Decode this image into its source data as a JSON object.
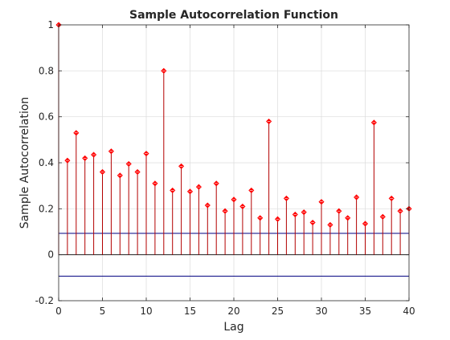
{
  "chart_data": {
    "type": "stem",
    "title": "Sample Autocorrelation Function",
    "xlabel": "Lag",
    "ylabel": "Sample Autocorrelation",
    "xlim": [
      0,
      40
    ],
    "ylim": [
      -0.2,
      1
    ],
    "xticks": [
      0,
      5,
      10,
      15,
      20,
      25,
      30,
      35,
      40
    ],
    "xtick_labels": [
      "0",
      "5",
      "10",
      "15",
      "20",
      "25",
      "30",
      "35",
      "40"
    ],
    "yticks": [
      -0.2,
      0,
      0.2,
      0.4,
      0.6,
      0.8,
      1
    ],
    "ytick_labels": [
      "-0.2",
      "0",
      "0.2",
      "0.4",
      "0.6",
      "0.8",
      "1"
    ],
    "grid": true,
    "series": [
      {
        "x": [
          0,
          1,
          2,
          3,
          4,
          5,
          6,
          7,
          8,
          9,
          10,
          11,
          12,
          13,
          14,
          15,
          16,
          17,
          18,
          19,
          20,
          21,
          22,
          23,
          24,
          25,
          26,
          27,
          28,
          29,
          30,
          31,
          32,
          33,
          34,
          35,
          36,
          37,
          38,
          39,
          40
        ],
        "values": [
          1.0,
          0.41,
          0.53,
          0.42,
          0.435,
          0.36,
          0.45,
          0.345,
          0.395,
          0.36,
          0.44,
          0.31,
          0.8,
          0.28,
          0.385,
          0.275,
          0.295,
          0.215,
          0.31,
          0.19,
          0.24,
          0.21,
          0.28,
          0.16,
          0.58,
          0.155,
          0.245,
          0.175,
          0.185,
          0.14,
          0.23,
          0.13,
          0.19,
          0.16,
          0.25,
          0.135,
          0.575,
          0.165,
          0.245,
          0.19,
          0.2
        ],
        "color": "#ff0000",
        "stem_color": "#b30000"
      }
    ],
    "confidence_bounds": [
      0.093,
      -0.093
    ],
    "bound_color": "#000080",
    "zero_line_color": "#000000"
  }
}
